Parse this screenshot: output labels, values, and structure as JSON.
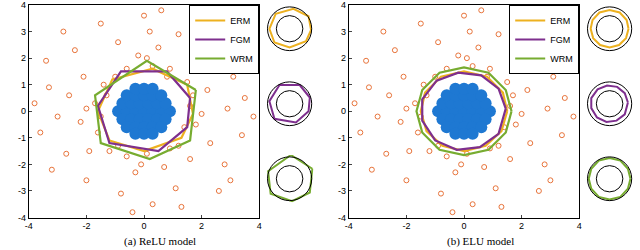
{
  "chart_data": [
    {
      "type": "scatter",
      "title": "(a) ReLU model",
      "xlim": [
        -4,
        4
      ],
      "ylim": [
        -4,
        4
      ],
      "xticks": [
        -4,
        -2,
        0,
        2,
        4
      ],
      "yticks": [
        -4,
        -3,
        -2,
        -1,
        0,
        1,
        2,
        3,
        4
      ],
      "grid": false,
      "legend": "top right",
      "inset_circles": [
        1.05,
        1.75
      ],
      "inset_lim": [
        -1.9,
        1.9
      ],
      "series": [
        {
          "type": "scatter",
          "marker": "open",
          "color": "#E8743B",
          "x": [
            1.6,
            1.8,
            2.2,
            2.9,
            3.4,
            1.5,
            1.9,
            2.6,
            3.1,
            0.9,
            0.3,
            0.5,
            -0.2,
            -0.6,
            -0.9,
            0.2,
            1.2,
            -1.4,
            -1.7,
            -2.1,
            -2.6,
            -3.0,
            -2.2,
            -1.6,
            -1.9,
            -2.7,
            -1.2,
            -0.6,
            0.1,
            -0.3,
            0.7,
            1.2,
            1.6,
            2.3,
            2.8,
            1.1,
            -0.8,
            -2.0,
            -3.3,
            -2.4,
            0.0,
            2.0,
            3.5,
            3.0,
            0.3,
            -1.5,
            -3.6,
            -3.2,
            2.4,
            1.7,
            -1.5,
            0.8,
            -1.0,
            -0.9,
            0.9,
            2.0,
            -2.0,
            0.1,
            -0.1,
            1.4,
            -1.3,
            3.8,
            -3.8,
            0.6,
            -0.4,
            2.6,
            -2.8,
            3.3,
            -3.4,
            1.3
          ],
          "y": [
            0.2,
            -0.5,
            0.8,
            0.1,
            -0.9,
            1.1,
            1.6,
            1.9,
            1.3,
            1.6,
            1.7,
            2.4,
            2.1,
            1.6,
            2.6,
            3.0,
            2.9,
            1.0,
            0.3,
            1.3,
            0.6,
            -0.2,
            -0.4,
            -0.8,
            -1.5,
            -1.6,
            -1.5,
            -1.7,
            -1.6,
            -2.3,
            -2.1,
            -1.3,
            -1.8,
            -1.2,
            -2.0,
            -2.9,
            -3.1,
            -2.6,
            0.9,
            2.3,
            3.6,
            3.0,
            0.5,
            -2.6,
            -3.5,
            3.3,
            -0.8,
            -2.2,
            2.6,
            0.6,
            -0.2,
            1.3,
            1.3,
            -1.3,
            -1.4,
            -0.1,
            0.1,
            2.0,
            -2.0,
            -0.6,
            0.6,
            -0.2,
            0.3,
            3.8,
            -3.8,
            -3.0,
            3.0,
            2.4,
            1.9,
            -3.6
          ]
        },
        {
          "type": "scatter",
          "marker": "filled",
          "color": "#1E78D2",
          "x": [
            -0.9,
            -0.6,
            -0.3,
            0,
            0.3,
            0.6,
            0.9,
            -0.75,
            -0.45,
            -0.15,
            0.15,
            0.45,
            0.75,
            -0.75,
            -0.45,
            -0.15,
            0.15,
            0.45,
            0.75,
            -0.6,
            -0.3,
            0,
            0.3,
            0.6,
            -0.6,
            -0.3,
            0,
            0.3,
            0.6,
            -0.3,
            0,
            0.3,
            -0.3,
            0,
            0.3
          ],
          "y": [
            0,
            0,
            0,
            0,
            0,
            0,
            0,
            0.3,
            0.3,
            0.3,
            0.3,
            0.3,
            0.3,
            -0.3,
            -0.3,
            -0.3,
            -0.3,
            -0.3,
            -0.3,
            0.6,
            0.6,
            0.6,
            0.6,
            0.6,
            -0.6,
            -0.6,
            -0.6,
            -0.6,
            -0.6,
            0.85,
            0.85,
            0.85,
            -0.85,
            -0.85,
            -0.85
          ]
        },
        {
          "type": "line",
          "name": "ERM",
          "color": "#EDB120",
          "x": [
            1.7,
            1.5,
            0.3,
            -1.1,
            -1.6,
            -1.2,
            0.0,
            1.3,
            1.7
          ],
          "y": [
            -0.1,
            1.0,
            1.6,
            1.2,
            0.0,
            -1.1,
            -1.5,
            -1.0,
            -0.1
          ]
        },
        {
          "type": "line",
          "name": "FGM",
          "color": "#7E2F8E",
          "x": [
            1.6,
            0.8,
            -0.8,
            -1.6,
            -1.2,
            0.5,
            1.5,
            1.6
          ],
          "y": [
            0.5,
            1.5,
            1.5,
            0.2,
            -1.2,
            -1.5,
            -0.6,
            0.5
          ]
        },
        {
          "type": "line",
          "name": "WRM",
          "color": "#77AC30",
          "x": [
            1.8,
            0.1,
            -1.7,
            -1.5,
            0.2,
            1.6,
            1.8
          ],
          "y": [
            0.8,
            1.9,
            0.6,
            -1.2,
            -1.8,
            -1.1,
            0.8
          ]
        }
      ]
    },
    {
      "type": "scatter",
      "title": "(b) ELU model",
      "xlim": [
        -4,
        4
      ],
      "ylim": [
        -4,
        4
      ],
      "xticks": [
        -4,
        -2,
        0,
        2,
        4
      ],
      "yticks": [
        -4,
        -3,
        -2,
        -1,
        0,
        1,
        2,
        3,
        4
      ],
      "grid": false,
      "legend": "top right",
      "inset_circles": [
        1.05,
        1.75
      ],
      "inset_lim": [
        -1.9,
        1.9
      ],
      "series": [
        {
          "type": "scatter",
          "marker": "open",
          "color": "#E8743B",
          "x": [
            1.6,
            1.8,
            2.2,
            2.9,
            3.4,
            1.5,
            1.9,
            2.6,
            3.1,
            0.9,
            0.3,
            0.5,
            -0.2,
            -0.6,
            -0.9,
            0.2,
            1.2,
            -1.4,
            -1.7,
            -2.1,
            -2.6,
            -3.0,
            -2.2,
            -1.6,
            -1.9,
            -2.7,
            -1.2,
            -0.6,
            0.1,
            -0.3,
            0.7,
            1.2,
            1.6,
            2.3,
            2.8,
            1.1,
            -0.8,
            -2.0,
            -3.3,
            -2.4,
            0.0,
            2.0,
            3.5,
            3.0,
            0.3,
            -1.5,
            -3.6,
            -3.2,
            2.4,
            1.7,
            -1.5,
            0.8,
            -1.0,
            -0.9,
            0.9,
            2.0,
            -2.0,
            0.1,
            -0.1,
            1.4,
            -1.3,
            3.8,
            -3.8,
            0.6,
            -0.4,
            2.6,
            -2.8,
            3.3,
            -3.4,
            1.3
          ],
          "y": [
            0.2,
            -0.5,
            0.8,
            0.1,
            -0.9,
            1.1,
            1.6,
            1.9,
            1.3,
            1.6,
            1.7,
            2.4,
            2.1,
            1.6,
            2.6,
            3.0,
            2.9,
            1.0,
            0.3,
            1.3,
            0.6,
            -0.2,
            -0.4,
            -0.8,
            -1.5,
            -1.6,
            -1.5,
            -1.7,
            -1.6,
            -2.3,
            -2.1,
            -1.3,
            -1.8,
            -1.2,
            -2.0,
            -2.9,
            -3.1,
            -2.6,
            0.9,
            2.3,
            3.6,
            3.0,
            0.5,
            -2.6,
            -3.5,
            3.3,
            -0.8,
            -2.2,
            2.6,
            0.6,
            -0.2,
            1.3,
            1.3,
            -1.3,
            -1.4,
            -0.1,
            0.1,
            2.0,
            -2.0,
            -0.6,
            0.6,
            -0.2,
            0.3,
            3.8,
            -3.8,
            -3.0,
            3.0,
            2.4,
            1.9,
            -3.6
          ]
        },
        {
          "type": "scatter",
          "marker": "filled",
          "color": "#1E78D2",
          "x": [
            -0.9,
            -0.6,
            -0.3,
            0,
            0.3,
            0.6,
            0.9,
            -0.75,
            -0.45,
            -0.15,
            0.15,
            0.45,
            0.75,
            -0.75,
            -0.45,
            -0.15,
            0.15,
            0.45,
            0.75,
            -0.6,
            -0.3,
            0,
            0.3,
            0.6,
            -0.6,
            -0.3,
            0,
            0.3,
            0.6,
            -0.3,
            0,
            0.3,
            -0.3,
            0,
            0.3
          ],
          "y": [
            0,
            0,
            0,
            0,
            0,
            0,
            0,
            0.3,
            0.3,
            0.3,
            0.3,
            0.3,
            0.3,
            -0.3,
            -0.3,
            -0.3,
            -0.3,
            -0.3,
            -0.3,
            0.6,
            0.6,
            0.6,
            0.6,
            0.6,
            -0.6,
            -0.6,
            -0.6,
            -0.6,
            -0.6,
            0.85,
            0.85,
            0.85,
            -0.85,
            -0.85,
            -0.85
          ]
        },
        {
          "type": "line",
          "name": "ERM",
          "color": "#EDB120",
          "x": [
            1.5,
            1.35,
            0.8,
            0.0,
            -0.8,
            -1.35,
            -1.5,
            -1.3,
            -0.75,
            0.0,
            0.75,
            1.3,
            1.5
          ],
          "y": [
            0.0,
            0.7,
            1.3,
            1.5,
            1.3,
            0.7,
            0.0,
            -0.75,
            -1.3,
            -1.5,
            -1.3,
            -0.75,
            0.0
          ]
        },
        {
          "type": "line",
          "name": "FGM",
          "color": "#7E2F8E",
          "x": [
            1.45,
            1.2,
            0.6,
            -0.2,
            -0.95,
            -1.45,
            -1.45,
            -1.0,
            -0.25,
            0.55,
            1.2,
            1.45
          ],
          "y": [
            0.1,
            0.85,
            1.35,
            1.45,
            1.15,
            0.45,
            -0.35,
            -1.1,
            -1.45,
            -1.35,
            -0.85,
            0.1
          ]
        },
        {
          "type": "line",
          "name": "WRM",
          "color": "#77AC30",
          "x": [
            1.65,
            1.45,
            0.85,
            0.0,
            -0.85,
            -1.45,
            -1.65,
            -1.45,
            -0.85,
            0.0,
            0.85,
            1.45,
            1.65
          ],
          "y": [
            0.0,
            0.8,
            1.45,
            1.65,
            1.45,
            0.8,
            0.0,
            -0.8,
            -1.45,
            -1.65,
            -1.45,
            -0.8,
            0.0
          ]
        }
      ]
    }
  ]
}
